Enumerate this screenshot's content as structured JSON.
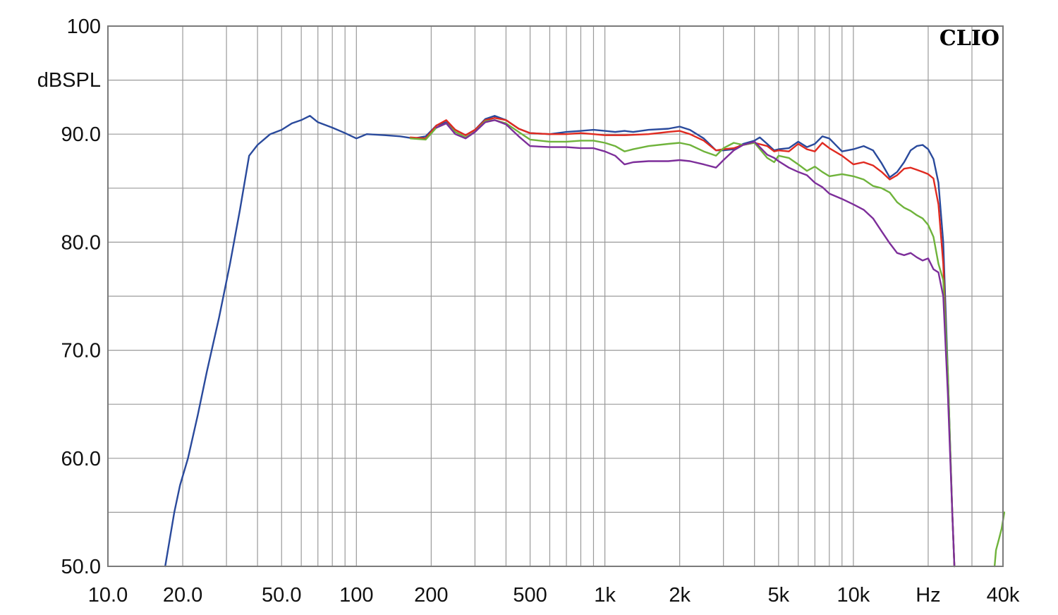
{
  "chart_data": {
    "type": "line",
    "title": "",
    "brand": "CLIO",
    "ylabel": "dBSPL",
    "xlabel": "Hz",
    "x_scale": "log",
    "xlim": [
      10,
      40000
    ],
    "ylim": [
      50,
      100
    ],
    "grid": true,
    "y_ticks": [
      {
        "value": 100,
        "label": "100"
      },
      {
        "value": 90,
        "label": "90.0"
      },
      {
        "value": 80,
        "label": "80.0"
      },
      {
        "value": 70,
        "label": "70.0"
      },
      {
        "value": 60,
        "label": "60.0"
      },
      {
        "value": 50,
        "label": "50.0"
      }
    ],
    "x_ticks": [
      {
        "value": 10,
        "label": "10.0"
      },
      {
        "value": 20,
        "label": "20.0"
      },
      {
        "value": 50,
        "label": "50.0"
      },
      {
        "value": 100,
        "label": "100"
      },
      {
        "value": 200,
        "label": "200"
      },
      {
        "value": 500,
        "label": "500"
      },
      {
        "value": 1000,
        "label": "1k"
      },
      {
        "value": 2000,
        "label": "2k"
      },
      {
        "value": 5000,
        "label": "5k"
      },
      {
        "value": 10000,
        "label": "10k"
      },
      {
        "value": 20000,
        "label": "Hz"
      },
      {
        "value": 40000,
        "label": "40k"
      }
    ],
    "series": [
      {
        "color": "#2a4a9c",
        "points": [
          [
            17,
            50
          ],
          [
            18.5,
            55
          ],
          [
            19.5,
            57.5
          ],
          [
            21,
            60
          ],
          [
            23,
            64
          ],
          [
            25,
            68
          ],
          [
            28,
            73
          ],
          [
            31,
            78
          ],
          [
            34,
            83
          ],
          [
            37,
            88
          ],
          [
            40,
            89
          ],
          [
            45,
            90
          ],
          [
            50,
            90.4
          ],
          [
            55,
            91
          ],
          [
            60,
            91.3
          ],
          [
            65,
            91.7
          ],
          [
            70,
            91.1
          ],
          [
            80,
            90.6
          ],
          [
            90,
            90.1
          ],
          [
            100,
            89.6
          ],
          [
            110,
            90
          ],
          [
            130,
            89.9
          ],
          [
            150,
            89.8
          ],
          [
            170,
            89.6
          ],
          [
            190,
            89.8
          ],
          [
            210,
            90.8
          ],
          [
            230,
            91.1
          ],
          [
            250,
            90.4
          ],
          [
            275,
            89.9
          ],
          [
            300,
            90.4
          ],
          [
            330,
            91.4
          ],
          [
            360,
            91.7
          ],
          [
            400,
            91.3
          ],
          [
            450,
            90.5
          ],
          [
            500,
            90.1
          ],
          [
            600,
            90
          ],
          [
            700,
            90.2
          ],
          [
            800,
            90.3
          ],
          [
            900,
            90.4
          ],
          [
            1000,
            90.3
          ],
          [
            1100,
            90.2
          ],
          [
            1200,
            90.3
          ],
          [
            1300,
            90.2
          ],
          [
            1500,
            90.4
          ],
          [
            1800,
            90.5
          ],
          [
            2000,
            90.7
          ],
          [
            2200,
            90.4
          ],
          [
            2500,
            89.6
          ],
          [
            2800,
            88.5
          ],
          [
            3000,
            88.5
          ],
          [
            3300,
            88.6
          ],
          [
            3600,
            89.1
          ],
          [
            4000,
            89.4
          ],
          [
            4200,
            89.7
          ],
          [
            4500,
            89.1
          ],
          [
            4800,
            88.5
          ],
          [
            5000,
            88.6
          ],
          [
            5500,
            88.7
          ],
          [
            6000,
            89.3
          ],
          [
            6500,
            88.8
          ],
          [
            7000,
            89.1
          ],
          [
            7500,
            89.8
          ],
          [
            8000,
            89.6
          ],
          [
            9000,
            88.4
          ],
          [
            10000,
            88.6
          ],
          [
            11000,
            88.9
          ],
          [
            12000,
            88.5
          ],
          [
            13000,
            87.3
          ],
          [
            14000,
            86
          ],
          [
            15000,
            86.5
          ],
          [
            16000,
            87.4
          ],
          [
            17000,
            88.5
          ],
          [
            18000,
            88.9
          ],
          [
            19000,
            89
          ],
          [
            20000,
            88.6
          ],
          [
            21000,
            87.7
          ],
          [
            22000,
            85.5
          ],
          [
            23000,
            80
          ],
          [
            24000,
            68
          ],
          [
            25000,
            55
          ],
          [
            25500,
            50
          ]
        ]
      },
      {
        "color": "#e02a20",
        "points": [
          [
            165,
            89.7
          ],
          [
            190,
            89.6
          ],
          [
            210,
            90.8
          ],
          [
            230,
            91.3
          ],
          [
            250,
            90.4
          ],
          [
            275,
            89.9
          ],
          [
            300,
            90.4
          ],
          [
            330,
            91.3
          ],
          [
            360,
            91.5
          ],
          [
            400,
            91.3
          ],
          [
            450,
            90.5
          ],
          [
            500,
            90.1
          ],
          [
            600,
            90
          ],
          [
            700,
            90
          ],
          [
            800,
            90.1
          ],
          [
            900,
            90
          ],
          [
            1000,
            89.9
          ],
          [
            1200,
            89.9
          ],
          [
            1500,
            90
          ],
          [
            1800,
            90.2
          ],
          [
            2000,
            90.3
          ],
          [
            2200,
            90
          ],
          [
            2500,
            89.4
          ],
          [
            2800,
            88.5
          ],
          [
            3000,
            88.6
          ],
          [
            3300,
            88.7
          ],
          [
            3600,
            89
          ],
          [
            4000,
            89.2
          ],
          [
            4500,
            88.9
          ],
          [
            4800,
            88.4
          ],
          [
            5000,
            88.5
          ],
          [
            5500,
            88.4
          ],
          [
            6000,
            89.1
          ],
          [
            6500,
            88.6
          ],
          [
            7000,
            88.4
          ],
          [
            7500,
            89.2
          ],
          [
            8000,
            88.7
          ],
          [
            9000,
            88
          ],
          [
            10000,
            87.2
          ],
          [
            11000,
            87.4
          ],
          [
            12000,
            87.1
          ],
          [
            13000,
            86.5
          ],
          [
            14000,
            85.8
          ],
          [
            15000,
            86.2
          ],
          [
            16000,
            86.8
          ],
          [
            17000,
            86.9
          ],
          [
            18000,
            86.7
          ],
          [
            19000,
            86.5
          ],
          [
            20000,
            86.3
          ],
          [
            21000,
            85.9
          ],
          [
            22000,
            83.5
          ],
          [
            23000,
            78
          ],
          [
            24000,
            67
          ],
          [
            25000,
            55
          ],
          [
            25500,
            50
          ]
        ]
      },
      {
        "color": "#6fb33b",
        "points": [
          [
            165,
            89.6
          ],
          [
            190,
            89.5
          ],
          [
            210,
            90.6
          ],
          [
            230,
            91
          ],
          [
            250,
            90.2
          ],
          [
            275,
            89.7
          ],
          [
            300,
            90.2
          ],
          [
            330,
            91.2
          ],
          [
            360,
            91.3
          ],
          [
            400,
            91
          ],
          [
            450,
            90.2
          ],
          [
            500,
            89.5
          ],
          [
            600,
            89.3
          ],
          [
            700,
            89.3
          ],
          [
            800,
            89.4
          ],
          [
            900,
            89.4
          ],
          [
            1000,
            89.2
          ],
          [
            1100,
            88.9
          ],
          [
            1200,
            88.4
          ],
          [
            1300,
            88.6
          ],
          [
            1500,
            88.9
          ],
          [
            1800,
            89.1
          ],
          [
            2000,
            89.2
          ],
          [
            2200,
            89
          ],
          [
            2500,
            88.4
          ],
          [
            2800,
            88
          ],
          [
            3000,
            88.7
          ],
          [
            3300,
            89.2
          ],
          [
            3600,
            89
          ],
          [
            4000,
            89.2
          ],
          [
            4500,
            87.8
          ],
          [
            4800,
            87.4
          ],
          [
            5000,
            88
          ],
          [
            5500,
            87.8
          ],
          [
            6000,
            87.2
          ],
          [
            6500,
            86.6
          ],
          [
            7000,
            87
          ],
          [
            7500,
            86.5
          ],
          [
            8000,
            86.1
          ],
          [
            9000,
            86.3
          ],
          [
            10000,
            86.1
          ],
          [
            11000,
            85.8
          ],
          [
            12000,
            85.2
          ],
          [
            13000,
            85
          ],
          [
            14000,
            84.6
          ],
          [
            15000,
            83.7
          ],
          [
            16000,
            83.2
          ],
          [
            17000,
            82.9
          ],
          [
            18000,
            82.5
          ],
          [
            19000,
            82.2
          ],
          [
            20000,
            81.6
          ],
          [
            21000,
            80.5
          ],
          [
            22000,
            78
          ],
          [
            23000,
            76.5
          ],
          [
            24000,
            68
          ],
          [
            25000,
            55
          ],
          [
            25500,
            50
          ]
        ]
      },
      {
        "color": "#7d2e9a",
        "points": [
          [
            210,
            90.6
          ],
          [
            230,
            91
          ],
          [
            250,
            90
          ],
          [
            275,
            89.6
          ],
          [
            300,
            90.2
          ],
          [
            330,
            91.1
          ],
          [
            360,
            91.3
          ],
          [
            400,
            90.9
          ],
          [
            450,
            89.8
          ],
          [
            500,
            88.9
          ],
          [
            600,
            88.8
          ],
          [
            700,
            88.8
          ],
          [
            800,
            88.7
          ],
          [
            900,
            88.7
          ],
          [
            1000,
            88.4
          ],
          [
            1100,
            88
          ],
          [
            1200,
            87.2
          ],
          [
            1300,
            87.4
          ],
          [
            1500,
            87.5
          ],
          [
            1800,
            87.5
          ],
          [
            2000,
            87.6
          ],
          [
            2200,
            87.5
          ],
          [
            2500,
            87.2
          ],
          [
            2800,
            86.9
          ],
          [
            3000,
            87.6
          ],
          [
            3300,
            88.5
          ],
          [
            3600,
            89
          ],
          [
            4000,
            89.3
          ],
          [
            4500,
            88.1
          ],
          [
            4800,
            87.8
          ],
          [
            5000,
            87.5
          ],
          [
            5500,
            86.9
          ],
          [
            6000,
            86.5
          ],
          [
            6500,
            86.2
          ],
          [
            7000,
            85.5
          ],
          [
            7500,
            85.1
          ],
          [
            8000,
            84.5
          ],
          [
            9000,
            84
          ],
          [
            10000,
            83.5
          ],
          [
            11000,
            83
          ],
          [
            12000,
            82.2
          ],
          [
            13000,
            81
          ],
          [
            14000,
            79.9
          ],
          [
            15000,
            79
          ],
          [
            16000,
            78.8
          ],
          [
            17000,
            79
          ],
          [
            18000,
            78.6
          ],
          [
            19000,
            78.3
          ],
          [
            20000,
            78.5
          ],
          [
            21000,
            77.5
          ],
          [
            22000,
            77.2
          ],
          [
            23000,
            75
          ],
          [
            24000,
            66
          ],
          [
            25000,
            55
          ],
          [
            25500,
            50
          ]
        ]
      },
      {
        "color": "#6fb33b",
        "points": [
          [
            37000,
            50
          ],
          [
            37500,
            51.5
          ],
          [
            38500,
            52.5
          ],
          [
            39500,
            53.5
          ],
          [
            40500,
            55
          ]
        ]
      }
    ]
  }
}
